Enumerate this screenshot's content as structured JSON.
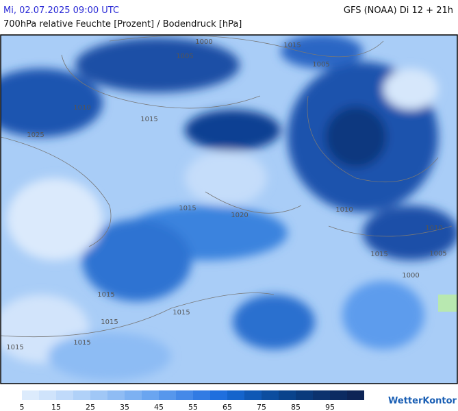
{
  "header": {
    "datetime": "Mi, 02.07.2025 09:00 UTC",
    "model": "GFS (NOAA) Di 12 + 21h",
    "subtitle": "700hPa relative Feuchte [Prozent] / Bodendruck [hPa]"
  },
  "map": {
    "isobar_labels": [
      "1000",
      "1005",
      "1015",
      "1005",
      "1010",
      "1015",
      "1025",
      "1015",
      "1020",
      "1010",
      "1010",
      "1015",
      "1005",
      "1000",
      "1015",
      "1015",
      "1015",
      "1015",
      "1015"
    ]
  },
  "legend": {
    "labels": [
      "5",
      "15",
      "25",
      "35",
      "45",
      "55",
      "65",
      "75",
      "85",
      "95"
    ],
    "colors": [
      "#dcebfc",
      "#cfe3fb",
      "#c0dafa",
      "#b0d1f8",
      "#a0c7f6",
      "#8fbcf4",
      "#7db1f2",
      "#6aa5f0",
      "#5797ec",
      "#4589e8",
      "#327be3",
      "#1f6fde",
      "#1464cc",
      "#0f58b5",
      "#0c4d9f",
      "#0a438c",
      "#0a3a7c",
      "#0b326e",
      "#0c2b62",
      "#0d2456"
    ]
  },
  "logo": "WetterKontor"
}
